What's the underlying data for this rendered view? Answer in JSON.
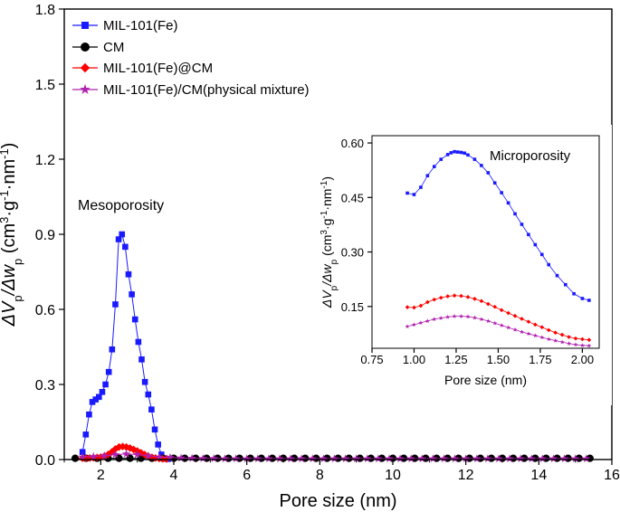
{
  "chart_data": [
    {
      "type": "scatter",
      "title": "",
      "xlabel": "Pore size (nm)",
      "ylabel_parts": [
        "ΔV",
        "p",
        "/Δw",
        "p",
        " (cm",
        "3",
        "·g",
        "-1",
        "·nm",
        "-1",
        ")"
      ],
      "xlim": [
        1,
        16
      ],
      "ylim": [
        0,
        1.8
      ],
      "x_ticks": [
        "2",
        "4",
        "6",
        "8",
        "10",
        "12",
        "14",
        "16"
      ],
      "y_ticks": [
        "0.0",
        "0.3",
        "0.6",
        "0.9",
        "1.2",
        "1.5",
        "1.8"
      ],
      "legend_position": "top-left",
      "annotation": "Mesoporosity",
      "series": [
        {
          "name": "MIL-101(Fe)",
          "color": "#1a1aff",
          "marker": "square",
          "x": [
            1.5,
            1.59,
            1.68,
            1.77,
            1.86,
            1.95,
            2.04,
            2.13,
            2.22,
            2.31,
            2.4,
            2.49,
            2.58,
            2.67,
            2.76,
            2.85,
            2.94,
            3.03,
            3.12,
            3.21,
            3.3,
            3.39,
            3.48,
            3.57,
            3.66,
            3.75,
            3.84
          ],
          "y": [
            0.03,
            0.1,
            0.18,
            0.23,
            0.24,
            0.25,
            0.27,
            0.3,
            0.35,
            0.44,
            0.62,
            0.88,
            0.9,
            0.85,
            0.74,
            0.66,
            0.56,
            0.47,
            0.4,
            0.31,
            0.26,
            0.2,
            0.12,
            0.06,
            0.02,
            0.005,
            0.002
          ]
        },
        {
          "name": "CM",
          "color": "#000000",
          "marker": "circle",
          "x": [
            1.3,
            1.6,
            1.9,
            2.2,
            2.5,
            2.8,
            3.1,
            3.4,
            3.7,
            4.0,
            4.3,
            4.6,
            4.9,
            5.2,
            5.5,
            5.8,
            6.1,
            6.4,
            6.7,
            7.0,
            7.3,
            7.6,
            7.9,
            8.2,
            8.5,
            8.8,
            9.1,
            9.4,
            9.7,
            10.0,
            10.3,
            10.6,
            10.9,
            11.2,
            11.5,
            11.8,
            12.1,
            12.4,
            12.7,
            13.0,
            13.3,
            13.6,
            13.9,
            14.2,
            14.5,
            14.8,
            15.1,
            15.4
          ],
          "y": [
            0.005,
            0.005,
            0.005,
            0.005,
            0.005,
            0.005,
            0.005,
            0.005,
            0.005,
            0.005,
            0.005,
            0.005,
            0.005,
            0.005,
            0.005,
            0.005,
            0.005,
            0.005,
            0.005,
            0.005,
            0.005,
            0.005,
            0.005,
            0.005,
            0.005,
            0.005,
            0.005,
            0.005,
            0.005,
            0.005,
            0.005,
            0.005,
            0.005,
            0.005,
            0.005,
            0.005,
            0.005,
            0.005,
            0.005,
            0.005,
            0.005,
            0.005,
            0.005,
            0.005,
            0.005,
            0.005,
            0.005,
            0.005
          ]
        },
        {
          "name": "MIL-101(Fe)@CM",
          "color": "#ff0000",
          "marker": "diamond",
          "x": [
            1.5,
            1.6,
            1.7,
            1.8,
            1.9,
            2.0,
            2.1,
            2.2,
            2.3,
            2.4,
            2.5,
            2.6,
            2.7,
            2.8,
            2.9,
            3.0,
            3.1,
            3.2,
            3.3,
            3.4,
            3.5,
            3.6,
            3.7,
            3.8
          ],
          "y": [
            0.005,
            0.005,
            0.006,
            0.007,
            0.008,
            0.01,
            0.014,
            0.02,
            0.03,
            0.042,
            0.05,
            0.052,
            0.05,
            0.046,
            0.04,
            0.034,
            0.027,
            0.02,
            0.014,
            0.009,
            0.006,
            0.004,
            0.003,
            0.002
          ]
        },
        {
          "name": "MIL-101(Fe)/CM(physical mixture)",
          "color": "#b020b0",
          "marker": "star",
          "x": [
            1.5,
            1.8,
            2.1,
            2.4,
            2.7,
            3.0,
            3.3,
            3.6,
            3.9,
            4.2,
            4.5,
            4.8,
            5.1,
            5.4,
            5.7,
            6.0,
            6.3,
            6.6,
            6.9,
            7.2,
            7.5,
            7.8,
            8.1,
            8.4,
            8.7,
            9.0,
            9.3,
            9.6,
            9.9,
            10.2,
            10.5,
            10.8,
            11.1,
            11.4,
            11.7,
            12.0,
            12.3,
            12.6,
            12.9,
            13.2,
            13.5,
            13.8,
            14.1,
            14.4,
            14.7,
            15.0,
            15.3
          ],
          "y": [
            0.01,
            0.012,
            0.015,
            0.02,
            0.022,
            0.02,
            0.015,
            0.01,
            0.008,
            0.006,
            0.005,
            0.004,
            0.004,
            0.003,
            0.003,
            0.003,
            0.003,
            0.003,
            0.003,
            0.003,
            0.003,
            0.003,
            0.003,
            0.003,
            0.003,
            0.003,
            0.003,
            0.003,
            0.003,
            0.003,
            0.003,
            0.003,
            0.003,
            0.003,
            0.003,
            0.003,
            0.003,
            0.003,
            0.003,
            0.003,
            0.003,
            0.003,
            0.003,
            0.003,
            0.003,
            0.003,
            0.003
          ]
        }
      ]
    },
    {
      "type": "line",
      "title": "",
      "xlabel": "Pore size (nm)",
      "ylabel_parts": [
        "ΔV",
        "p",
        "/Δw",
        "p",
        " (cm",
        "3",
        "·g",
        "-1",
        "·nm",
        "-1",
        ")"
      ],
      "xlim": [
        0.75,
        2.1
      ],
      "ylim": [
        0.035,
        0.62
      ],
      "x_ticks": [
        "0.75",
        "1.00",
        "1.25",
        "1.50",
        "1.75",
        "2.00"
      ],
      "y_ticks": [
        "0.15",
        "0.30",
        "0.45",
        "0.60"
      ],
      "annotation": "Microporosity",
      "series": [
        {
          "name": "MIL-101(Fe)",
          "color": "#1a1aff",
          "marker": "square",
          "x": [
            0.96,
            1.0,
            1.04,
            1.08,
            1.12,
            1.16,
            1.2,
            1.22,
            1.24,
            1.26,
            1.28,
            1.3,
            1.32,
            1.36,
            1.4,
            1.44,
            1.48,
            1.52,
            1.56,
            1.6,
            1.64,
            1.68,
            1.72,
            1.76,
            1.8,
            1.85,
            1.9,
            1.95,
            2.0,
            2.04
          ],
          "y": [
            0.462,
            0.458,
            0.478,
            0.51,
            0.535,
            0.555,
            0.568,
            0.573,
            0.576,
            0.575,
            0.574,
            0.572,
            0.567,
            0.555,
            0.538,
            0.518,
            0.49,
            0.463,
            0.435,
            0.405,
            0.376,
            0.348,
            0.32,
            0.293,
            0.265,
            0.235,
            0.21,
            0.185,
            0.172,
            0.167
          ]
        },
        {
          "name": "MIL-101(Fe)@CM",
          "color": "#ff0000",
          "marker": "diamond",
          "x": [
            0.96,
            1.0,
            1.04,
            1.08,
            1.12,
            1.16,
            1.2,
            1.24,
            1.28,
            1.32,
            1.36,
            1.4,
            1.44,
            1.48,
            1.52,
            1.56,
            1.6,
            1.64,
            1.68,
            1.72,
            1.76,
            1.8,
            1.84,
            1.88,
            1.92,
            1.96,
            2.0,
            2.04
          ],
          "y": [
            0.148,
            0.147,
            0.152,
            0.162,
            0.169,
            0.174,
            0.178,
            0.18,
            0.179,
            0.176,
            0.171,
            0.165,
            0.157,
            0.149,
            0.14,
            0.132,
            0.124,
            0.116,
            0.108,
            0.1,
            0.093,
            0.085,
            0.078,
            0.072,
            0.066,
            0.062,
            0.06,
            0.058
          ]
        },
        {
          "name": "MIL-101(Fe)/CM(physical mixture)",
          "color": "#b020b0",
          "marker": "star",
          "x": [
            0.96,
            1.0,
            1.04,
            1.08,
            1.12,
            1.16,
            1.2,
            1.24,
            1.28,
            1.32,
            1.36,
            1.4,
            1.44,
            1.48,
            1.52,
            1.56,
            1.6,
            1.64,
            1.68,
            1.72,
            1.76,
            1.8,
            1.84,
            1.88,
            1.92,
            1.96,
            2.0,
            2.04
          ],
          "y": [
            0.095,
            0.1,
            0.105,
            0.11,
            0.115,
            0.118,
            0.121,
            0.123,
            0.123,
            0.122,
            0.119,
            0.115,
            0.11,
            0.104,
            0.098,
            0.092,
            0.086,
            0.08,
            0.075,
            0.07,
            0.065,
            0.06,
            0.056,
            0.052,
            0.048,
            0.045,
            0.043,
            0.042
          ]
        }
      ]
    }
  ]
}
